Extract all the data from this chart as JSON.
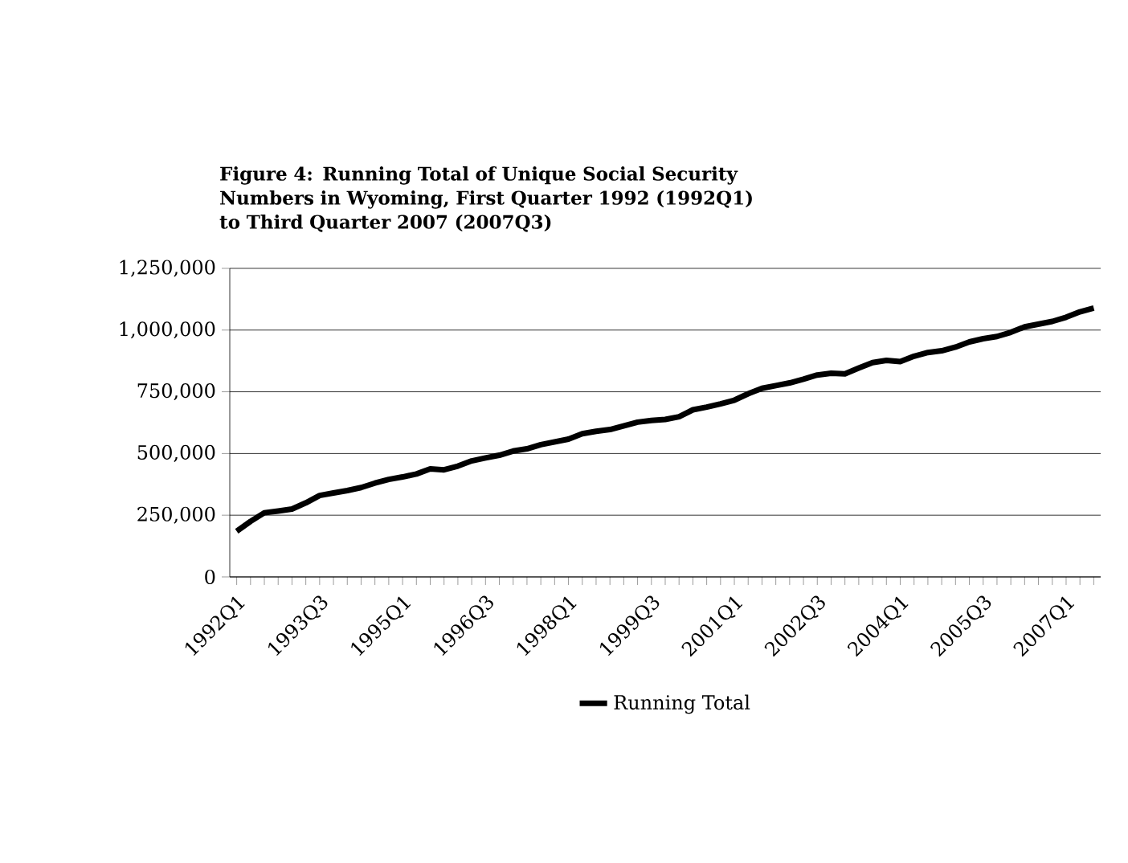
{
  "chart_data": {
    "type": "line",
    "title": "Figure 4: Running Total of Unique Social Security Numbers in Wyoming, First Quarter 1992 (1992Q1) to Third Quarter 2007 (2007Q3)",
    "categories": [
      "1992Q1",
      null,
      null,
      null,
      null,
      null,
      "1993Q3",
      null,
      null,
      null,
      null,
      null,
      "1995Q1",
      null,
      null,
      null,
      null,
      null,
      "1996Q3",
      null,
      null,
      null,
      null,
      null,
      "1998Q1",
      null,
      null,
      null,
      null,
      null,
      "1999Q3",
      null,
      null,
      null,
      null,
      null,
      "2001Q1",
      null,
      null,
      null,
      null,
      null,
      "2002Q3",
      null,
      null,
      null,
      null,
      null,
      "2004Q1",
      null,
      null,
      null,
      null,
      null,
      "2005Q3",
      null,
      null,
      null,
      null,
      null,
      "2007Q1",
      null,
      null
    ],
    "series": [
      {
        "name": "Running Total",
        "color": "#000000",
        "values": [
          185000,
          225000,
          260000,
          267000,
          275000,
          300000,
          330000,
          340000,
          350000,
          362000,
          380000,
          395000,
          405000,
          417000,
          438000,
          434000,
          449000,
          470000,
          482000,
          493000,
          510000,
          519000,
          536000,
          547000,
          558000,
          580000,
          590000,
          597000,
          612000,
          627000,
          634000,
          638000,
          649000,
          677000,
          688000,
          701000,
          716000,
          742000,
          764000,
          775000,
          786000,
          801000,
          818000,
          825000,
          823000,
          846000,
          868000,
          877000,
          872000,
          894000,
          909000,
          916000,
          931000,
          952000,
          965000,
          974000,
          991000,
          1013000,
          1024000,
          1035000,
          1052000,
          1074000,
          1089000
        ]
      }
    ],
    "ylim": [
      0,
      1250000
    ],
    "yticks": [
      0,
      {
        "value": 250000,
        "label": "250,000"
      },
      {
        "value": 500000,
        "label": "500,000"
      },
      {
        "value": 750000,
        "label": "750,000"
      },
      {
        "value": 1000000,
        "label": "1,000,000"
      },
      {
        "value": 1250000,
        "label": "1,250,000"
      }
    ],
    "grid": "y",
    "legend": "bottom",
    "marker": "none",
    "line_style": "solid"
  }
}
